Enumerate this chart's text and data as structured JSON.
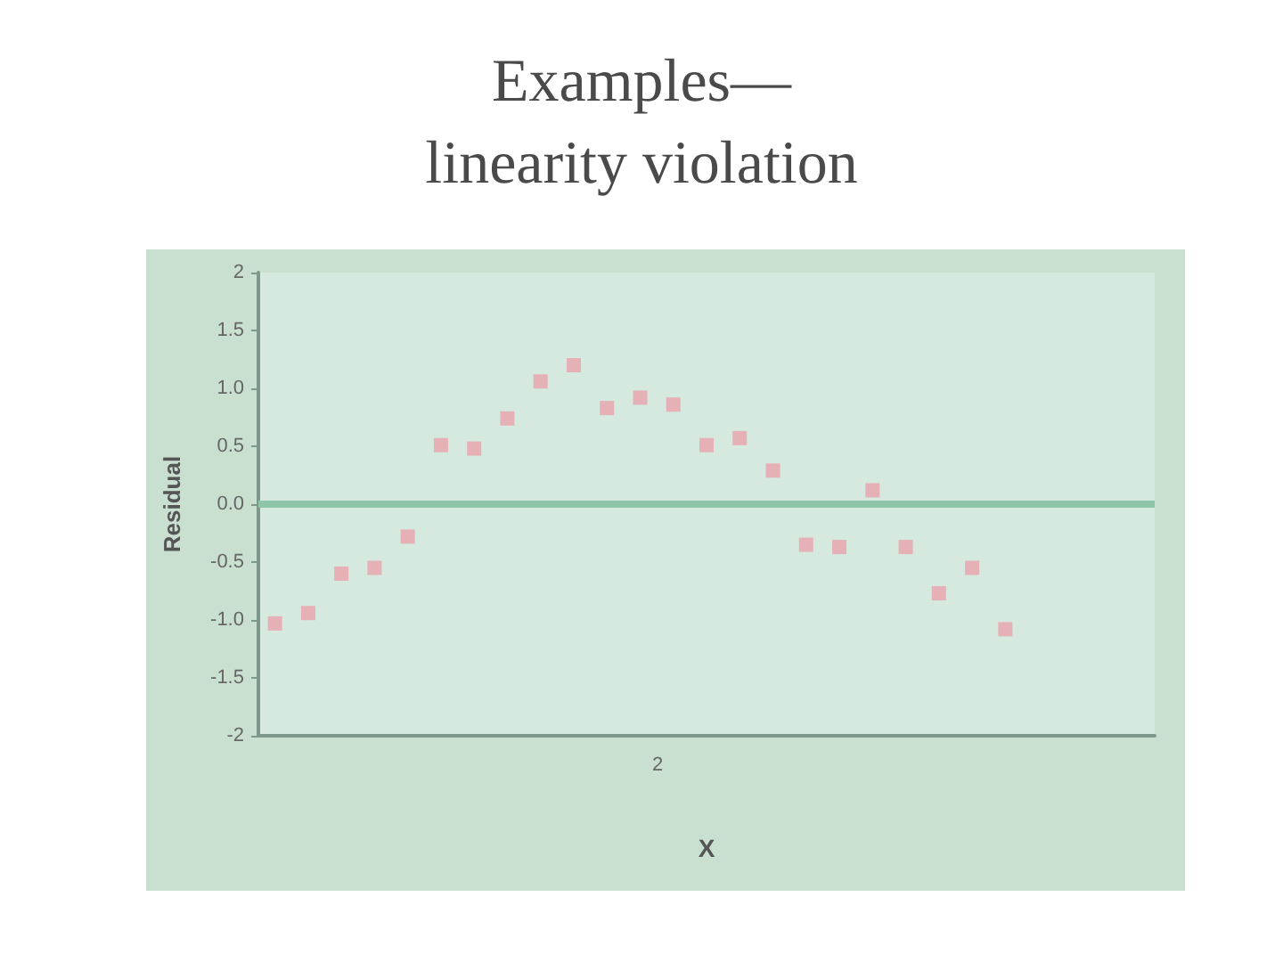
{
  "chart_data": {
    "type": "scatter",
    "title": "Examples—\nlinearity violation",
    "xlabel": "X",
    "ylabel": "Residual",
    "categories": [
      null,
      null,
      null,
      null,
      null,
      null,
      null,
      null,
      null,
      null,
      null,
      null,
      null,
      null,
      null,
      null,
      null,
      null,
      null,
      null,
      null,
      null,
      null,
      null,
      null,
      null,
      null
    ],
    "values": [
      -1.03,
      -0.94,
      -0.6,
      -0.55,
      -0.28,
      0.51,
      0.48,
      0.74,
      1.06,
      1.2,
      0.83,
      0.92,
      0.86,
      0.51,
      0.57,
      0.29,
      -0.35,
      -0.37,
      0.12,
      -0.37,
      -0.77,
      -0.55,
      -1.08,
      null,
      null,
      null,
      null
    ],
    "color": "#e8a2ac",
    "marker": "square",
    "grid": false,
    "ylim": [
      -2,
      2
    ],
    "yticks": [
      {
        "value": -2,
        "label": "-2"
      },
      {
        "value": -1.5,
        "label": "-1.5"
      },
      {
        "value": -1,
        "label": "-1.0"
      },
      {
        "value": -0.5,
        "label": "-0.5"
      },
      {
        "value": 0,
        "label": "0.0"
      },
      {
        "value": 0.5,
        "label": "0.5"
      },
      {
        "value": 1,
        "label": "1.0"
      },
      {
        "value": 1.5,
        "label": "1.5"
      },
      {
        "value": 2,
        "label": "2"
      }
    ],
    "ref_lines": [
      {
        "axis": "y",
        "value": 0,
        "color": "#8ec5aa"
      }
    ],
    "annotations": [
      "2"
    ]
  }
}
